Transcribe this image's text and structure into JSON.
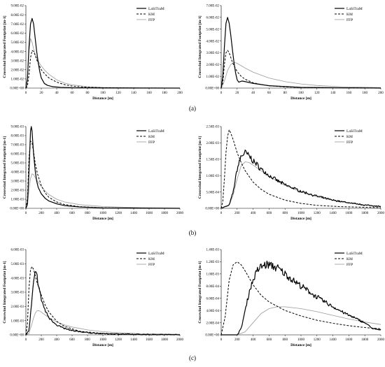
{
  "panel_labels": [
    "(a)",
    "(b)",
    "(c)"
  ],
  "series_styles": {
    "LaSiTraM": {
      "color": "#000000",
      "dash": "",
      "width": 1.2
    },
    "KM": {
      "color": "#000000",
      "dash": "3,2",
      "width": 1.0
    },
    "FFP": {
      "color": "#9a9a9a",
      "dash": "",
      "width": 0.8
    }
  },
  "chart_data": [
    {
      "id": "a-left",
      "type": "line",
      "title": "",
      "xlabel": "Distance [m]",
      "ylabel": "Crosswind Integrated Footprint [m-1]",
      "xlim": [
        0,
        200
      ],
      "ylim": [
        0,
        0.09
      ],
      "xticks": [
        "0",
        "20",
        "40",
        "60",
        "80",
        "100",
        "120",
        "140",
        "160",
        "180",
        "200"
      ],
      "yticks": [
        "0.00E+00",
        "1.00E-02",
        "2.00E-02",
        "3.00E-02",
        "4.00E-02",
        "5.00E-02",
        "6.00E-02",
        "7.00E-02",
        "8.00E-02",
        "9.00E-02"
      ],
      "legend": [
        "LaSiTraM",
        "KM",
        "FFP"
      ],
      "series": [
        {
          "name": "LaSiTraM",
          "x": [
            0,
            2,
            4,
            6,
            8,
            10,
            12,
            14,
            16,
            18,
            20,
            24,
            28,
            35,
            45,
            60,
            100,
            200
          ],
          "y": [
            0,
            0.01,
            0.045,
            0.07,
            0.076,
            0.07,
            0.055,
            0.04,
            0.028,
            0.018,
            0.011,
            0.005,
            0.003,
            0.0015,
            0.0008,
            0.0004,
            0.0001,
            0
          ]
        },
        {
          "name": "KM",
          "x": [
            0,
            2,
            4,
            6,
            8,
            10,
            12,
            14,
            16,
            20,
            25,
            30,
            40,
            50,
            60,
            80,
            100,
            150,
            200
          ],
          "y": [
            0,
            0.002,
            0.015,
            0.033,
            0.041,
            0.04,
            0.036,
            0.031,
            0.027,
            0.02,
            0.015,
            0.011,
            0.0065,
            0.0038,
            0.0022,
            0.0009,
            0.0004,
            0.0001,
            0
          ]
        },
        {
          "name": "FFP",
          "x": [
            0,
            2,
            4,
            6,
            8,
            10,
            12,
            15,
            20,
            25,
            30,
            40,
            50,
            60,
            80,
            100,
            150,
            200
          ],
          "y": [
            0,
            0.01,
            0.04,
            0.054,
            0.05,
            0.043,
            0.037,
            0.031,
            0.024,
            0.019,
            0.015,
            0.009,
            0.0055,
            0.0035,
            0.0015,
            0.0007,
            0.0002,
            0
          ]
        }
      ]
    },
    {
      "id": "a-right",
      "type": "line",
      "title": "",
      "xlabel": "Distance [m]",
      "ylabel": "Crosswind Integrated Footprint [m-1]",
      "xlim": [
        0,
        200
      ],
      "ylim": [
        0,
        0.07
      ],
      "xticks": [
        "0",
        "20",
        "40",
        "60",
        "80",
        "100",
        "120",
        "140",
        "160",
        "180",
        "200"
      ],
      "yticks": [
        "0.00E+00",
        "1.00E-02",
        "2.00E-02",
        "3.00E-02",
        "4.00E-02",
        "5.00E-02",
        "6.00E-02",
        "7.00E-02"
      ],
      "legend": [
        "LaSiTraM",
        "KM",
        "FFP"
      ],
      "series": [
        {
          "name": "LaSiTraM",
          "x": [
            0,
            2,
            4,
            6,
            8,
            10,
            12,
            14,
            16,
            18,
            20,
            22,
            24,
            26,
            30,
            40,
            60,
            100,
            200
          ],
          "y": [
            0,
            0.01,
            0.035,
            0.055,
            0.06,
            0.055,
            0.045,
            0.033,
            0.022,
            0.013,
            0.007,
            0.005,
            0.0055,
            0.006,
            0.0055,
            0.004,
            0.002,
            0.0006,
            0
          ]
        },
        {
          "name": "KM",
          "x": [
            0,
            2,
            4,
            6,
            8,
            10,
            12,
            14,
            16,
            20,
            25,
            30,
            40,
            50,
            60,
            80,
            100,
            150,
            200
          ],
          "y": [
            0,
            0.004,
            0.02,
            0.03,
            0.032,
            0.03,
            0.026,
            0.022,
            0.019,
            0.014,
            0.01,
            0.0075,
            0.0045,
            0.003,
            0.002,
            0.001,
            0.0005,
            0.0002,
            0
          ]
        },
        {
          "name": "FFP",
          "x": [
            0,
            4,
            8,
            12,
            16,
            20,
            25,
            30,
            40,
            50,
            60,
            80,
            100,
            120,
            150,
            200
          ],
          "y": [
            0,
            0.006,
            0.015,
            0.02,
            0.022,
            0.021,
            0.019,
            0.017,
            0.0135,
            0.011,
            0.0085,
            0.0055,
            0.0035,
            0.0022,
            0.0012,
            0.0004
          ]
        }
      ]
    },
    {
      "id": "b-left",
      "type": "line",
      "title": "",
      "xlabel": "Distance [m]",
      "ylabel": "Crosswind Integrated Footprint [m-1]",
      "xlim": [
        0,
        2000
      ],
      "ylim": [
        0,
        0.009
      ],
      "xticks": [
        "0",
        "200",
        "400",
        "600",
        "800",
        "1000",
        "1200",
        "1400",
        "1600",
        "1800",
        "2000"
      ],
      "yticks": [
        "0.00E+00",
        "1.00E-03",
        "2.00E-03",
        "3.00E-03",
        "4.00E-03",
        "5.00E-03",
        "6.00E-03",
        "7.00E-03",
        "8.00E-03",
        "9.00E-03"
      ],
      "legend": [
        "LaSiTraM",
        "KM",
        "FFP"
      ],
      "series": [
        {
          "name": "LaSiTraM",
          "x": [
            0,
            20,
            40,
            60,
            70,
            80,
            90,
            100,
            120,
            140,
            160,
            200,
            250,
            300,
            400,
            500,
            700,
            1000,
            2000
          ],
          "y": [
            0,
            0.0005,
            0.004,
            0.0085,
            0.009,
            0.0085,
            0.0072,
            0.006,
            0.0042,
            0.003,
            0.0023,
            0.0016,
            0.0011,
            0.0008,
            0.0005,
            0.0003,
            0.00015,
            5e-05,
            0
          ]
        },
        {
          "name": "KM",
          "x": [
            0,
            20,
            40,
            60,
            80,
            100,
            120,
            150,
            200,
            250,
            300,
            400,
            500,
            700,
            1000,
            1500,
            2000
          ],
          "y": [
            0,
            0.001,
            0.0055,
            0.0074,
            0.0072,
            0.0062,
            0.005,
            0.0038,
            0.0025,
            0.0017,
            0.0012,
            0.0007,
            0.00042,
            0.00018,
            6e-05,
            1e-05,
            0
          ]
        },
        {
          "name": "FFP",
          "x": [
            0,
            20,
            40,
            60,
            80,
            100,
            120,
            150,
            200,
            250,
            300,
            400,
            500,
            700,
            1000,
            1500,
            2000
          ],
          "y": [
            0,
            0.0003,
            0.002,
            0.0033,
            0.0038,
            0.0037,
            0.0034,
            0.003,
            0.0024,
            0.0019,
            0.0015,
            0.001,
            0.0007,
            0.0004,
            0.0002,
            7e-05,
            2e-05
          ]
        }
      ]
    },
    {
      "id": "b-right",
      "type": "line",
      "title": "",
      "xlabel": "Distance [m]",
      "ylabel": "Crosswind Integrated Footprint [m-1]",
      "xlim": [
        0,
        2000
      ],
      "ylim": [
        0,
        0.0025
      ],
      "xticks": [
        "0",
        "200",
        "400",
        "600",
        "800",
        "1000",
        "1200",
        "1400",
        "1600",
        "1800",
        "2000"
      ],
      "yticks": [
        "0.00E+00",
        "5.00E-04",
        "1.00E-03",
        "1.50E-03",
        "2.00E-03",
        "2.50E-03"
      ],
      "legend": [
        "LaSiTraM",
        "KM",
        "FFP"
      ],
      "noisy": [
        "LaSiTraM"
      ],
      "series": [
        {
          "name": "LaSiTraM",
          "x": [
            0,
            100,
            150,
            200,
            250,
            300,
            350,
            400,
            500,
            600,
            700,
            800,
            1000,
            1200,
            1400,
            1600,
            1800,
            2000
          ],
          "y": [
            0,
            0.0001,
            0.0005,
            0.0012,
            0.0016,
            0.0017,
            0.0016,
            0.00145,
            0.0012,
            0.001,
            0.00085,
            0.00072,
            0.00052,
            0.00037,
            0.00025,
            0.00017,
            0.0001,
            6e-05
          ]
        },
        {
          "name": "KM",
          "x": [
            0,
            20,
            40,
            60,
            80,
            100,
            120,
            150,
            200,
            250,
            300,
            400,
            500,
            600,
            800,
            1000,
            1200,
            1500,
            2000
          ],
          "y": [
            0,
            0.0002,
            0.0009,
            0.0017,
            0.0022,
            0.0024,
            0.0023,
            0.0021,
            0.0017,
            0.0014,
            0.00115,
            0.0008,
            0.00058,
            0.00043,
            0.00025,
            0.00015,
            9e-05,
            5e-05,
            2e-05
          ]
        },
        {
          "name": "FFP",
          "x": [
            0,
            100,
            150,
            200,
            250,
            300,
            350,
            400,
            500,
            600,
            700,
            800,
            1000,
            1200,
            1400,
            1600,
            1800,
            2000
          ],
          "y": [
            0,
            0.0001,
            0.0004,
            0.0009,
            0.0013,
            0.00142,
            0.0014,
            0.00132,
            0.00115,
            0.00098,
            0.00083,
            0.0007,
            0.0005,
            0.00035,
            0.00024,
            0.00016,
            0.0001,
            6e-05
          ]
        }
      ]
    },
    {
      "id": "c-left",
      "type": "line",
      "title": "",
      "xlabel": "Distance [m]",
      "ylabel": "Crosswind Integrated Footprint [m-1]",
      "xlim": [
        0,
        2000
      ],
      "ylim": [
        0,
        0.006
      ],
      "xticks": [
        "0",
        "200",
        "400",
        "600",
        "800",
        "1000",
        "1200",
        "1400",
        "1600",
        "1800",
        "2000"
      ],
      "yticks": [
        "0.00E+00",
        "1.00E-03",
        "2.00E-03",
        "3.00E-03",
        "4.00E-03",
        "5.00E-03",
        "6.00E-03"
      ],
      "legend": [
        "LaSiTraM",
        "KM",
        "FFP"
      ],
      "noisy": [
        "LaSiTraM"
      ],
      "series": [
        {
          "name": "LaSiTraM",
          "x": [
            0,
            40,
            80,
            100,
            120,
            140,
            160,
            180,
            200,
            250,
            300,
            400,
            500,
            600,
            800,
            1000,
            1400,
            2000
          ],
          "y": [
            0,
            0.0003,
            0.0025,
            0.0037,
            0.0043,
            0.0042,
            0.0037,
            0.003,
            0.0025,
            0.0017,
            0.0012,
            0.0007,
            0.00045,
            0.0003,
            0.00015,
            8e-05,
            3e-05,
            1e-05
          ]
        },
        {
          "name": "KM",
          "x": [
            0,
            20,
            40,
            60,
            80,
            100,
            120,
            150,
            200,
            250,
            300,
            400,
            500,
            700,
            1000,
            1500,
            2000
          ],
          "y": [
            0,
            0.0008,
            0.0033,
            0.0046,
            0.0048,
            0.0046,
            0.0042,
            0.0036,
            0.0028,
            0.0021,
            0.0016,
            0.00095,
            0.0006,
            0.00025,
            0.0001,
            2e-05,
            0
          ]
        },
        {
          "name": "FFP",
          "x": [
            0,
            40,
            80,
            100,
            120,
            140,
            160,
            180,
            200,
            250,
            300,
            400,
            500,
            600,
            800,
            1000,
            1200,
            1500,
            2000
          ],
          "y": [
            0,
            0.0001,
            0.0008,
            0.0012,
            0.0015,
            0.00168,
            0.0017,
            0.00168,
            0.0016,
            0.0014,
            0.0012,
            0.0009,
            0.0007,
            0.00055,
            0.00035,
            0.00022,
            0.00015,
            8e-05,
            4e-05
          ]
        }
      ]
    },
    {
      "id": "c-right",
      "type": "line",
      "title": "",
      "xlabel": "Distance [m]",
      "ylabel": "Crosswind Integrated Footprint [m-1]",
      "xlim": [
        0,
        2000
      ],
      "ylim": [
        0,
        0.0014
      ],
      "xticks": [
        "0",
        "200",
        "400",
        "600",
        "800",
        "1000",
        "1200",
        "1400",
        "1600",
        "1800",
        "2000"
      ],
      "yticks": [
        "0.00E+00",
        "2.00E-04",
        "4.00E-04",
        "6.00E-04",
        "8.00E-04",
        "1.00E-03",
        "1.20E-03",
        "1.40E-03"
      ],
      "legend": [
        "LaSiTraM",
        "KM",
        "FFP"
      ],
      "noisy": [
        "LaSiTraM"
      ],
      "series": [
        {
          "name": "LaSiTraM",
          "x": [
            0,
            200,
            250,
            300,
            350,
            400,
            450,
            500,
            550,
            600,
            700,
            800,
            900,
            1000,
            1200,
            1400,
            1600,
            1800,
            1900,
            2000
          ],
          "y": [
            0,
            0,
            0.0001,
            0.0004,
            0.0007,
            0.0009,
            0.00105,
            0.00112,
            0.00115,
            0.00115,
            0.0011,
            0.001,
            0.0009,
            0.0008,
            0.00062,
            0.00046,
            0.00032,
            0.0002,
            0.0001,
            8e-05
          ]
        },
        {
          "name": "KM",
          "x": [
            0,
            50,
            100,
            150,
            200,
            250,
            300,
            400,
            500,
            600,
            800,
            1000,
            1200,
            1400,
            1600,
            1800,
            2000
          ],
          "y": [
            0,
            0.0003,
            0.0009,
            0.00115,
            0.0012,
            0.00115,
            0.00105,
            0.00082,
            0.00065,
            0.00054,
            0.0004,
            0.00031,
            0.00024,
            0.00019,
            0.00015,
            0.00012,
            0.0001
          ]
        },
        {
          "name": "FFP",
          "x": [
            0,
            200,
            300,
            400,
            500,
            600,
            700,
            800,
            1000,
            1200,
            1400,
            1600,
            1800,
            2000
          ],
          "y": [
            0,
            0,
            5e-05,
            0.0002,
            0.00035,
            0.00043,
            0.00046,
            0.00046,
            0.00043,
            0.00038,
            0.00032,
            0.00026,
            0.00021,
            0.00017
          ]
        }
      ]
    }
  ]
}
